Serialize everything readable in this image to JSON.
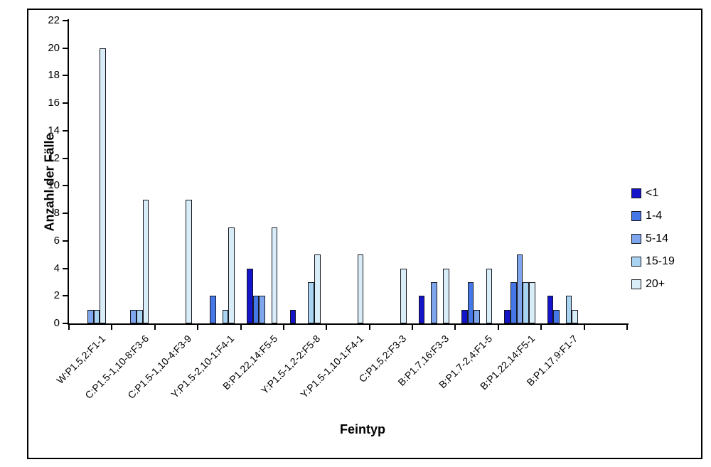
{
  "figure": {
    "background": "#ffffff",
    "border_color": "#000000",
    "axis_color": "#000000"
  },
  "chart_data": {
    "type": "bar",
    "title": "",
    "xlabel": "Feintyp",
    "ylabel": "Anzahl der Fälle",
    "ylim": [
      0,
      22
    ],
    "ytick_step": 2,
    "grid": false,
    "legend_position": "right",
    "categories": [
      "W:P1.5,2:F1-1",
      "C:P1.5-1,10-8:F3-6",
      "C:P1.5-1,10-4:F3-9",
      "Y:P1.5-2,10-1:F4-1",
      "B:P1.22,14:F5-5",
      "Y:P1.5-1,2-2:F5-8",
      "Y:P1.5-1,10-1:F4-1",
      "C:P1.5,2:F3-3",
      "B:P1.7,16:F3-3",
      "B:P1.7-2,4:F1-5",
      "B:P1.22,14:F5-1",
      "B:P1.17,9:F1-7"
    ],
    "series": [
      {
        "name": "<1",
        "color": "#1414C8",
        "values": [
          0,
          0,
          0,
          0,
          4,
          1,
          0,
          0,
          2,
          1,
          1,
          2
        ]
      },
      {
        "name": "1-4",
        "color": "#4677E6",
        "values": [
          0,
          0,
          0,
          2,
          2,
          0,
          0,
          0,
          0,
          3,
          3,
          1
        ]
      },
      {
        "name": "5-14",
        "color": "#7FA6EC",
        "values": [
          1,
          1,
          0,
          0,
          2,
          0,
          0,
          0,
          3,
          1,
          5,
          0
        ]
      },
      {
        "name": "15-19",
        "color": "#A9D4F1",
        "values": [
          1,
          1,
          0,
          1,
          0,
          3,
          0,
          0,
          0,
          0,
          3,
          2
        ]
      },
      {
        "name": "20+",
        "color": "#D8EDF8",
        "values": [
          20,
          9,
          9,
          7,
          7,
          5,
          5,
          4,
          4,
          4,
          3,
          1
        ]
      }
    ]
  }
}
